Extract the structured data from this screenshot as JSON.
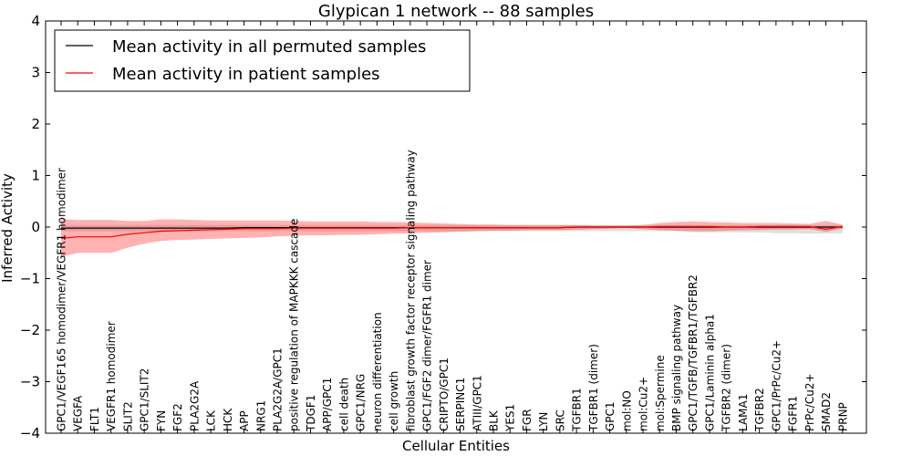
{
  "chart_data": {
    "type": "line",
    "title": "Glypican 1 network -- 88 samples",
    "xlabel": "Cellular Entities",
    "ylabel": "Inferred Activity",
    "ylim": [
      -4,
      4
    ],
    "yticks": [
      "4",
      "3",
      "2",
      "1",
      "0",
      "−1",
      "−2",
      "−3",
      "−4"
    ],
    "grid": false,
    "legend_position": "top-left",
    "categories": [
      "GPC1/VEGF165 homodimer/VEGFR1 homodimer",
      "VEGFA",
      "FLT1",
      "VEGFR1 homodimer",
      "SLIT2",
      "GPC1/SLIT2",
      "FYN",
      "FGF2",
      "PLA2G2A",
      "LCK",
      "HCK",
      "APP",
      "NRG1",
      "PLA2G2A/GPC1",
      "positive regulation of MAPKKK cascade",
      "TDGF1",
      "APP/GPC1",
      "cell death",
      "GPC1/NRG",
      "neuron differentiation",
      "cell growth",
      "fibroblast growth factor receptor signaling pathway",
      "GPC1/FGF2 dimer/FGFR1 dimer",
      "CRIPTO/GPC1",
      "SERPINC1",
      "ATIII/GPC1",
      "BLK",
      "YES1",
      "FGR",
      "LYN",
      "SRC",
      "TGFBR1",
      "TGFBR1 (dimer)",
      "GPC1",
      "mol:NO",
      "mol:Cu2+",
      "mol:Spermine",
      "BMP signaling pathway",
      "GPC1/TGFB/TGFBR1/TGFBR2",
      "GPC1/Laminin alpha1",
      "TGFBR2 (dimer)",
      "LAMA1",
      "TGFBR2",
      "GPC1/PrPc/Cu2+",
      "FGFR1",
      "PrPc/Cu2+",
      "SMAD2",
      "PRNP"
    ],
    "series": [
      {
        "name": "Mean activity in all permuted samples",
        "color": "#000000",
        "values": [
          -0.02,
          -0.02,
          -0.02,
          -0.02,
          -0.02,
          -0.02,
          -0.02,
          -0.02,
          -0.02,
          -0.02,
          -0.02,
          -0.01,
          -0.01,
          -0.01,
          -0.01,
          -0.01,
          -0.01,
          -0.01,
          -0.01,
          -0.01,
          -0.01,
          -0.01,
          -0.01,
          -0.01,
          -0.01,
          -0.01,
          -0.01,
          -0.01,
          -0.01,
          -0.01,
          -0.01,
          0,
          0,
          0,
          0,
          0,
          0,
          0,
          0,
          0,
          0,
          0,
          0,
          0,
          0,
          0,
          0,
          0
        ],
        "band": {
          "color": "#bbbbbb",
          "upper": [
            0.04,
            0.04,
            0.04,
            0.04,
            0.04,
            0.04,
            0.04,
            0.04,
            0.04,
            0.04,
            0.04,
            0.04,
            0.04,
            0.04,
            0.04,
            0.04,
            0.04,
            0.04,
            0.04,
            0.04,
            0.04,
            0.04,
            0.04,
            0.04,
            0.04,
            0.04,
            0.04,
            0.04,
            0.04,
            0.04,
            0.04,
            0.04,
            0.04,
            0.04,
            0.04,
            0.04,
            0.04,
            0.04,
            0.04,
            0.04,
            0.04,
            0.04,
            0.04,
            0.04,
            0.04,
            0.04,
            0.04,
            0.04
          ],
          "lower": [
            -0.08,
            -0.08,
            -0.08,
            -0.08,
            -0.08,
            -0.08,
            -0.08,
            -0.08,
            -0.08,
            -0.08,
            -0.08,
            -0.08,
            -0.08,
            -0.08,
            -0.08,
            -0.08,
            -0.08,
            -0.08,
            -0.08,
            -0.08,
            -0.08,
            -0.08,
            -0.08,
            -0.08,
            -0.08,
            -0.08,
            -0.08,
            -0.08,
            -0.08,
            -0.08,
            -0.08,
            -0.08,
            -0.08,
            -0.08,
            -0.08,
            -0.08,
            -0.08,
            -0.08,
            -0.1,
            -0.1,
            -0.1,
            -0.1,
            -0.1,
            -0.12,
            -0.12,
            -0.13,
            -0.13,
            -0.12
          ]
        }
      },
      {
        "name": "Mean activity in patient samples",
        "color": "#ff0000",
        "values": [
          -0.22,
          -0.19,
          -0.19,
          -0.19,
          -0.14,
          -0.11,
          -0.08,
          -0.07,
          -0.06,
          -0.05,
          -0.04,
          -0.03,
          -0.03,
          -0.03,
          -0.02,
          -0.02,
          -0.02,
          -0.02,
          -0.02,
          -0.02,
          -0.02,
          -0.01,
          -0.01,
          -0.01,
          -0.01,
          -0.01,
          -0.01,
          -0.01,
          -0.01,
          -0.01,
          -0.01,
          0,
          0,
          0,
          0,
          0,
          0.01,
          0.01,
          0.01,
          0.01,
          0.0,
          0.0,
          0.01,
          0.01,
          0.01,
          0.01,
          -0.04,
          0.01
        ],
        "band": {
          "color": "#ff0000",
          "upper": [
            0.16,
            0.14,
            0.14,
            0.14,
            0.12,
            0.12,
            0.15,
            0.15,
            0.14,
            0.13,
            0.13,
            0.13,
            0.13,
            0.13,
            0.12,
            0.11,
            0.11,
            0.11,
            0.11,
            0.1,
            0.1,
            0.09,
            0.08,
            0.07,
            0.06,
            0.05,
            0.05,
            0.04,
            0.04,
            0.04,
            0.04,
            0.04,
            0.03,
            0.03,
            0.03,
            0.04,
            0.08,
            0.1,
            0.11,
            0.1,
            0.09,
            0.08,
            0.08,
            0.08,
            0.07,
            0.06,
            0.12,
            0.05
          ],
          "lower": [
            -0.58,
            -0.5,
            -0.5,
            -0.5,
            -0.4,
            -0.32,
            -0.27,
            -0.25,
            -0.24,
            -0.23,
            -0.22,
            -0.21,
            -0.2,
            -0.18,
            -0.17,
            -0.16,
            -0.16,
            -0.15,
            -0.15,
            -0.14,
            -0.13,
            -0.12,
            -0.11,
            -0.1,
            -0.09,
            -0.08,
            -0.07,
            -0.07,
            -0.06,
            -0.06,
            -0.06,
            -0.05,
            -0.04,
            -0.03,
            -0.02,
            -0.04,
            -0.06,
            -0.07,
            -0.08,
            -0.08,
            -0.07,
            -0.06,
            -0.06,
            -0.05,
            -0.05,
            -0.04,
            -0.09,
            -0.03
          ]
        }
      }
    ]
  }
}
